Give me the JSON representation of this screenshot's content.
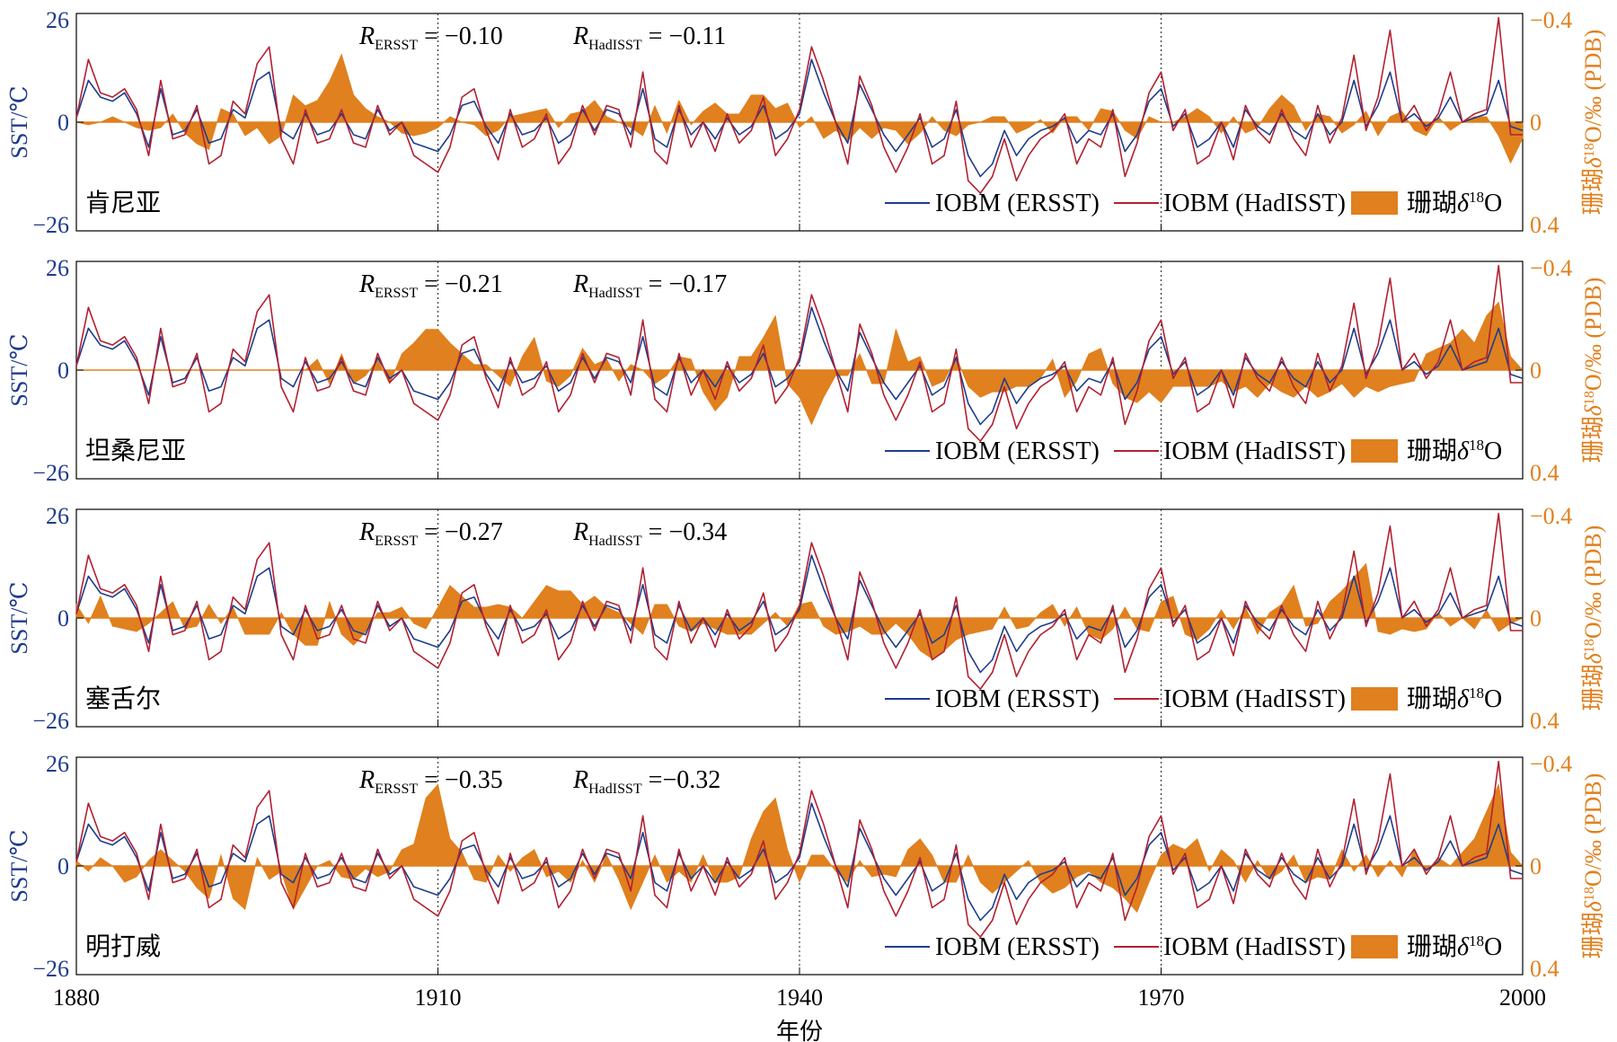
{
  "figure": {
    "x_label": "年份",
    "x_ticks": [
      "1880",
      "1910",
      "1940",
      "1970",
      "2000"
    ],
    "left_axis_label": "SST/℃",
    "right_axis_label": "珊瑚δ18O/‰ (PDB)",
    "left_ticks": [
      "26",
      "0",
      "−26"
    ],
    "right_ticks": [
      "−0.4",
      "0",
      "0.4"
    ],
    "legend": {
      "ersst": "IOBM (ERSST)",
      "hadisst": "IOBM (HadISST)",
      "coral_prefix": "珊瑚",
      "coral_delta": "δ",
      "coral_sup": "18",
      "coral_o": "O"
    },
    "colors": {
      "ersst": "#1f3c8c",
      "hadisst": "#b22030",
      "coral": "#e0801e",
      "axis_left": "#1f3c8c",
      "axis_right": "#e0801e"
    }
  },
  "panels": [
    {
      "site": "肯尼亚",
      "r_ersst_sub": "ERSST",
      "r_ersst_val": "= −0.10",
      "r_had_sub": "HadISST",
      "r_had_val": "= −0.11"
    },
    {
      "site": "坦桑尼亚",
      "r_ersst_sub": "ERSST",
      "r_ersst_val": "= −0.21",
      "r_had_sub": "HadISST",
      "r_had_val": "= −0.17"
    },
    {
      "site": "塞舌尔",
      "r_ersst_sub": "ERSST",
      "r_ersst_val": "= −0.27",
      "r_had_sub": "HadISST",
      "r_had_val": "= −0.34"
    },
    {
      "site": "明打威",
      "r_ersst_sub": "ERSST",
      "r_ersst_val": "= −0.35",
      "r_had_sub": "HadISST",
      "r_had_val": "=−0.32"
    }
  ],
  "chart_data": {
    "type": "line",
    "x_range": [
      1880,
      2000
    ],
    "sst_range": [
      -26,
      26
    ],
    "coral_range": [
      0.4,
      -0.4
    ],
    "years": [
      1880,
      1881,
      1882,
      1883,
      1884,
      1885,
      1886,
      1887,
      1888,
      1889,
      1890,
      1891,
      1892,
      1893,
      1894,
      1895,
      1896,
      1897,
      1898,
      1899,
      1900,
      1901,
      1902,
      1903,
      1904,
      1905,
      1906,
      1907,
      1908,
      1909,
      1910,
      1911,
      1912,
      1913,
      1914,
      1915,
      1916,
      1917,
      1918,
      1919,
      1920,
      1921,
      1922,
      1923,
      1924,
      1925,
      1926,
      1927,
      1928,
      1929,
      1930,
      1931,
      1932,
      1933,
      1934,
      1935,
      1936,
      1937,
      1938,
      1939,
      1940,
      1941,
      1942,
      1943,
      1944,
      1945,
      1946,
      1947,
      1948,
      1949,
      1950,
      1951,
      1952,
      1953,
      1954,
      1955,
      1956,
      1957,
      1958,
      1959,
      1960,
      1961,
      1962,
      1963,
      1964,
      1965,
      1966,
      1967,
      1968,
      1969,
      1970,
      1971,
      1972,
      1973,
      1974,
      1975,
      1976,
      1977,
      1978,
      1979,
      1980,
      1981,
      1982,
      1983,
      1984,
      1985,
      1986,
      1987,
      1988,
      1989,
      1990,
      1991,
      1992,
      1993,
      1994,
      1995,
      1996,
      1997,
      1998,
      1999,
      2000
    ],
    "iobm_ersst": [
      1,
      10,
      6,
      5,
      7,
      2,
      -6,
      8,
      -3,
      -2,
      3,
      -5,
      -4,
      3,
      1,
      10,
      12,
      -2,
      -4,
      2,
      -3,
      -2,
      2,
      -3,
      -4,
      3,
      -2,
      0,
      -5,
      -6,
      -7,
      -3,
      4,
      5,
      -1,
      -5,
      2,
      -3,
      -2,
      1,
      -5,
      -3,
      3,
      -2,
      3,
      2,
      -3,
      8,
      -4,
      -6,
      3,
      -3,
      0,
      -4,
      1,
      -3,
      -1,
      4,
      -4,
      -2,
      2,
      15,
      7,
      0,
      -5,
      9,
      3,
      -3,
      -7,
      -3,
      1,
      -6,
      -4,
      3,
      -8,
      -13,
      -10,
      -2,
      -8,
      -4,
      -2,
      -1,
      1,
      -5,
      -2,
      -3,
      2,
      -7,
      -3,
      5,
      8,
      -1,
      2,
      -6,
      -4,
      0,
      -6,
      3,
      -1,
      -3,
      2,
      -2,
      -4,
      2,
      -3,
      0,
      10,
      -1,
      4,
      12,
      0,
      2,
      -1,
      1,
      6,
      0,
      1,
      2,
      10,
      -1,
      -2
    ],
    "iobm_hadisst": [
      1,
      15,
      7,
      6,
      8,
      3,
      -8,
      10,
      -4,
      -3,
      4,
      -10,
      -8,
      5,
      2,
      14,
      18,
      -4,
      -10,
      3,
      -5,
      -4,
      3,
      -5,
      -6,
      4,
      -3,
      0,
      -8,
      -10,
      -12,
      -6,
      6,
      8,
      -2,
      -9,
      3,
      -6,
      -4,
      2,
      -10,
      -6,
      4,
      -3,
      4,
      3,
      -6,
      12,
      -7,
      -10,
      4,
      -6,
      0,
      -7,
      2,
      -5,
      -2,
      6,
      -8,
      -4,
      3,
      18,
      10,
      0,
      -10,
      11,
      4,
      -6,
      -12,
      -6,
      2,
      -10,
      -8,
      5,
      -14,
      -17,
      -13,
      -4,
      -14,
      -8,
      -4,
      -2,
      2,
      -10,
      -4,
      -6,
      3,
      -13,
      -5,
      7,
      12,
      -2,
      3,
      -10,
      -8,
      0,
      -9,
      4,
      -2,
      -5,
      3,
      -4,
      -8,
      4,
      -5,
      1,
      16,
      -2,
      6,
      22,
      0,
      4,
      -2,
      2,
      12,
      0,
      2,
      3,
      25,
      -3,
      -3
    ],
    "coral_series": [
      {
        "name": "肯尼亚",
        "values": [
          0.0,
          0.01,
          0.0,
          -0.02,
          0.0,
          0.02,
          0.03,
          0.02,
          -0.03,
          0.04,
          0.08,
          0.1,
          -0.05,
          -0.03,
          0.05,
          0.02,
          0.08,
          0.05,
          -0.1,
          -0.06,
          -0.08,
          -0.15,
          -0.25,
          -0.1,
          -0.05,
          -0.02,
          0.0,
          0.04,
          0.05,
          0.04,
          0.02,
          -0.02,
          0.0,
          0.01,
          0.05,
          0.03,
          -0.02,
          -0.03,
          -0.04,
          -0.05,
          0.02,
          -0.03,
          -0.04,
          -0.08,
          -0.02,
          0.0,
          0.02,
          0.05,
          -0.06,
          0.04,
          -0.08,
          0.01,
          -0.04,
          -0.07,
          -0.03,
          -0.03,
          -0.1,
          -0.1,
          -0.05,
          -0.07,
          0.02,
          -0.02,
          0.06,
          0.03,
          0.07,
          0.02,
          0.06,
          0.02,
          0.03,
          0.08,
          0.04,
          -0.02,
          0.03,
          0.05,
          0.01,
          0.0,
          -0.02,
          -0.02,
          0.04,
          0.02,
          -0.01,
          0.04,
          -0.02,
          -0.02,
          0.03,
          -0.05,
          -0.04,
          0.03,
          0.06,
          -0.02,
          0.0,
          0.0,
          -0.02,
          -0.05,
          -0.02,
          0.04,
          -0.02,
          0.04,
          0.02,
          -0.05,
          -0.1,
          -0.06,
          0.03,
          -0.03,
          -0.02,
          0.04,
          0.01,
          -0.04,
          0.05,
          -0.02,
          -0.04,
          0.03,
          0.05,
          -0.02,
          0.03,
          0.0,
          -0.02,
          -0.02,
          0.05,
          0.15,
          0.06
        ]
      },
      {
        "name": "坦桑尼亚",
        "values": [
          0,
          0,
          0,
          0,
          0,
          0,
          0,
          0,
          0,
          0,
          0,
          0,
          0,
          0,
          0,
          0,
          0,
          0,
          0,
          0,
          -0.04,
          0.05,
          -0.06,
          0.05,
          0.02,
          -0.04,
          0.05,
          -0.06,
          -0.1,
          -0.15,
          -0.15,
          -0.1,
          -0.06,
          -0.02,
          -0.02,
          0.02,
          0.06,
          -0.05,
          -0.12,
          0.04,
          0.06,
          0.02,
          -0.08,
          -0.02,
          -0.04,
          0.04,
          -0.02,
          0.0,
          0.05,
          0.02,
          -0.05,
          -0.04,
          0.08,
          0.15,
          0.1,
          -0.05,
          -0.05,
          -0.12,
          -0.2,
          0.05,
          0.1,
          0.2,
          0.1,
          0.02,
          0.02,
          -0.06,
          0.05,
          0.05,
          -0.15,
          -0.03,
          -0.05,
          0.06,
          0.04,
          -0.05,
          0.06,
          0.1,
          0.08,
          0.08,
          0.06,
          0.06,
          0.03,
          -0.04,
          0.1,
          0.04,
          -0.06,
          -0.08,
          0.05,
          0.1,
          0.12,
          0.08,
          0.12,
          0.06,
          0.06,
          0.06,
          0.06,
          0.04,
          0.08,
          0.06,
          0.1,
          0.05,
          0.08,
          0.1,
          0.06,
          0.1,
          0.08,
          0.05,
          0.1,
          0.06,
          0.08,
          0.06,
          0.05,
          0.04,
          -0.06,
          -0.08,
          -0.1,
          -0.15,
          -0.1,
          -0.2,
          -0.25,
          -0.05,
          0.0
        ]
      },
      {
        "name": "塞舌尔",
        "values": [
          -0.05,
          0.02,
          -0.08,
          0.03,
          0.04,
          0.05,
          0.02,
          -0.02,
          -0.06,
          0.04,
          0.03,
          -0.05,
          0.02,
          -0.04,
          0.06,
          0.06,
          0.06,
          -0.02,
          0.06,
          0.1,
          0.1,
          -0.06,
          0.06,
          0.1,
          0.05,
          -0.02,
          -0.02,
          -0.04,
          0.02,
          0.04,
          -0.04,
          -0.12,
          -0.08,
          -0.04,
          -0.04,
          -0.05,
          -0.04,
          0.0,
          -0.06,
          -0.12,
          -0.1,
          -0.1,
          -0.05,
          -0.08,
          -0.04,
          -0.02,
          0.02,
          0.06,
          -0.05,
          -0.05,
          0.03,
          0.05,
          0.02,
          0.04,
          0.06,
          0.06,
          0.06,
          0.02,
          -0.02,
          0.03,
          -0.05,
          -0.06,
          0.03,
          0.06,
          0.05,
          0.03,
          0.06,
          0.06,
          0.02,
          0.06,
          0.12,
          0.15,
          0.12,
          0.08,
          0.06,
          0.05,
          0.04,
          -0.04,
          0.04,
          0.03,
          -0.02,
          -0.05,
          0.03,
          -0.04,
          0.06,
          0.08,
          0.04,
          -0.04,
          0.04,
          0.05,
          -0.06,
          -0.08,
          0.06,
          0.08,
          0.04,
          -0.03,
          0.04,
          -0.04,
          0.06,
          -0.02,
          -0.05,
          -0.12,
          0.03,
          0.02,
          -0.06,
          -0.1,
          -0.15,
          -0.2,
          0.05,
          0.06,
          0.04,
          0.05,
          0.04,
          -0.02,
          0.03,
          0.0,
          0.04,
          -0.03,
          0.05,
          0.02,
          0.0
        ]
      },
      {
        "name": "明打威",
        "values": [
          -0.02,
          0.02,
          -0.03,
          0.0,
          0.06,
          0.04,
          -0.02,
          -0.06,
          -0.02,
          0.02,
          0.08,
          0.12,
          -0.04,
          0.12,
          0.16,
          -0.03,
          0.05,
          0.02,
          0.16,
          0.08,
          0.0,
          -0.02,
          0.04,
          0.05,
          0.01,
          0.04,
          0.02,
          -0.06,
          -0.08,
          -0.25,
          -0.3,
          -0.1,
          -0.05,
          0.05,
          0.06,
          -0.04,
          0.02,
          -0.03,
          -0.06,
          0.04,
          0.02,
          0.06,
          -0.02,
          0.06,
          -0.04,
          0.05,
          0.16,
          0.06,
          -0.04,
          0.06,
          0.02,
          0.06,
          -0.04,
          0.06,
          0.06,
          0.04,
          -0.1,
          -0.2,
          -0.25,
          -0.06,
          0.06,
          -0.04,
          -0.04,
          0.02,
          0.06,
          -0.02,
          0.04,
          0.03,
          0.04,
          -0.06,
          -0.1,
          -0.04,
          0.06,
          0.06,
          -0.04,
          0.06,
          0.1,
          0.06,
          0.02,
          -0.02,
          0.06,
          0.1,
          0.08,
          0.04,
          0.02,
          0.06,
          0.08,
          0.12,
          0.17,
          0.06,
          -0.04,
          -0.08,
          -0.06,
          -0.1,
          0.02,
          -0.06,
          -0.02,
          0.06,
          -0.02,
          0.05,
          0.02,
          -0.04,
          0.06,
          0.04,
          0.05,
          -0.06,
          0.02,
          -0.04,
          0.04,
          -0.02,
          0.04,
          -0.06,
          0.02,
          -0.03,
          0.0,
          -0.05,
          -0.1,
          -0.2,
          -0.3,
          -0.05,
          0.0
        ]
      }
    ]
  }
}
